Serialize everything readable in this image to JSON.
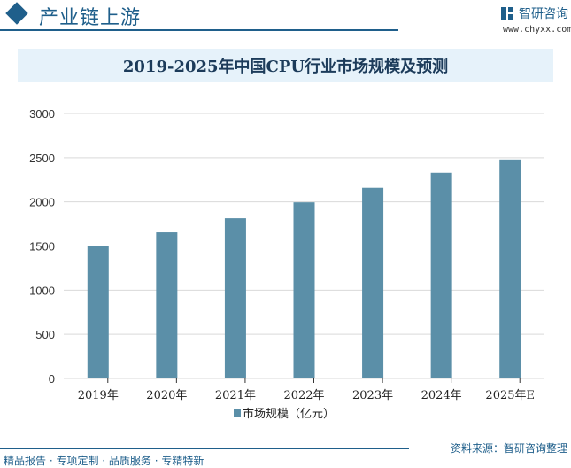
{
  "header": {
    "section_title": "产业链上游",
    "brand": "智研咨询",
    "url": "www.chyxx.com"
  },
  "footer": {
    "source": "资料来源：智研咨询整理",
    "slogan": "精品报告 · 专项定制 · 品质服务 · 专精特新"
  },
  "colors": {
    "bar": "#5b8fa8",
    "accent": "#1f5f8b",
    "title_bg": "#e6f2fa"
  },
  "chart_data": {
    "type": "bar",
    "title": "2019-2025年中国CPU行业市场规模及预测",
    "categories": [
      "2019年",
      "2020年",
      "2021年",
      "2022年",
      "2023年",
      "2024年",
      "2025年E"
    ],
    "series": [
      {
        "name": "市场规模（亿元）",
        "values": [
          1500,
          1655,
          1815,
          1995,
          2160,
          2330,
          2480
        ]
      }
    ],
    "ylim": [
      0,
      3000
    ],
    "yticks": [
      0,
      500,
      1000,
      1500,
      2000,
      2500,
      3000
    ],
    "grid": true,
    "legend": "bottom"
  }
}
